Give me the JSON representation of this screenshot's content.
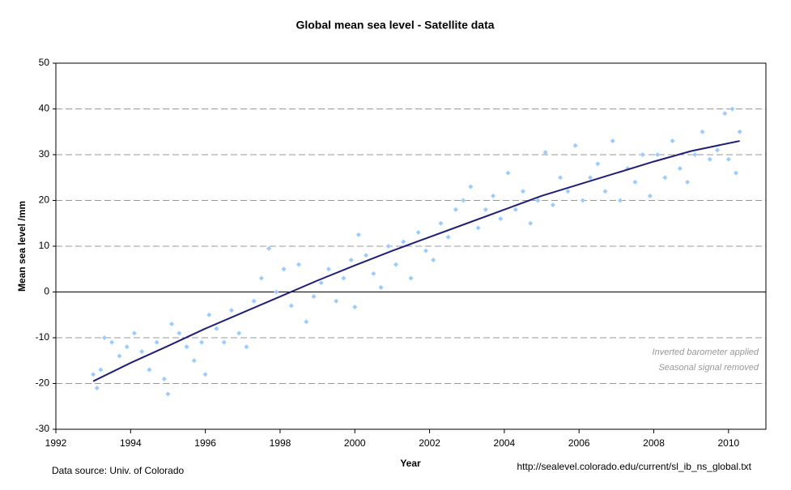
{
  "chart_data": {
    "type": "scatter",
    "title": "Global mean sea level - Satellite data",
    "x_label": "Year",
    "y_label": "Mean sea level /mm",
    "annotations": [
      "Inverted barometer applied",
      "Seasonal signal removed"
    ],
    "source": "Data source: Univ. of Colorado",
    "url": "http://sealevel.colorado.edu/current/sl_ib_ns_global.txt",
    "xlim": [
      1992,
      2011
    ],
    "xticks": [
      1992,
      1994,
      1996,
      1998,
      2000,
      2002,
      2004,
      2006,
      2008,
      2010
    ],
    "ylim": [
      -30,
      50
    ],
    "yticks": [
      -30,
      -20,
      -10,
      0,
      10,
      20,
      30,
      40,
      50
    ],
    "grid": true,
    "series": [
      {
        "color": "#99ccff",
        "x": [
          1993.0,
          1993.1,
          1993.2,
          1993.3,
          1993.5,
          1993.7,
          1993.9,
          1994.1,
          1994.3,
          1994.5,
          1994.7,
          1994.9,
          1995.0,
          1995.1,
          1995.3,
          1995.5,
          1995.7,
          1995.9,
          1996.0,
          1996.1,
          1996.3,
          1996.5,
          1996.7,
          1996.9,
          1997.1,
          1997.3,
          1997.5,
          1997.7,
          1997.9,
          1998.1,
          1998.3,
          1998.5,
          1998.7,
          1998.9,
          1999.1,
          1999.3,
          1999.5,
          1999.7,
          1999.9,
          2000.0,
          2000.1,
          2000.3,
          2000.5,
          2000.7,
          2000.9,
          2001.1,
          2001.3,
          2001.5,
          2001.7,
          2001.9,
          2002.1,
          2002.3,
          2002.5,
          2002.7,
          2002.9,
          2003.1,
          2003.3,
          2003.5,
          2003.7,
          2003.9,
          2004.1,
          2004.3,
          2004.5,
          2004.7,
          2004.9,
          2005.1,
          2005.3,
          2005.5,
          2005.7,
          2005.9,
          2006.1,
          2006.3,
          2006.5,
          2006.7,
          2006.9,
          2007.1,
          2007.3,
          2007.5,
          2007.7,
          2007.9,
          2008.1,
          2008.3,
          2008.5,
          2008.7,
          2008.9,
          2009.1,
          2009.3,
          2009.5,
          2009.7,
          2009.9,
          2010.0,
          2010.1,
          2010.2,
          2010.3
        ],
        "values": [
          -18,
          -21,
          -17,
          -10,
          -11,
          -14,
          -12,
          -9,
          -13,
          -17,
          -11,
          -19,
          -22.3,
          -7,
          -9,
          -12,
          -15,
          -11,
          -18,
          -5,
          -8,
          -11,
          -4,
          -9,
          -12,
          -2,
          3,
          9.5,
          0,
          5,
          -3,
          6,
          -6.5,
          -1,
          2,
          5,
          -2,
          3,
          7,
          -3.3,
          12.5,
          8,
          4,
          1,
          10,
          6,
          11,
          3,
          13,
          9,
          7,
          15,
          12,
          18,
          20,
          23,
          14,
          18,
          21,
          16,
          26,
          18,
          22,
          15,
          20,
          30.5,
          19,
          25,
          22,
          32,
          20,
          25,
          28,
          22,
          33,
          20,
          27,
          24,
          30,
          21,
          30,
          25,
          33,
          27,
          24,
          30,
          35,
          29,
          31,
          39,
          29,
          40,
          26,
          35
        ]
      },
      {
        "type": "line",
        "color": "#1f1f7a",
        "x": [
          1993,
          1994,
          1995,
          1996,
          1997,
          1998,
          1999,
          2000,
          2001,
          2002,
          2003,
          2004,
          2005,
          2006,
          2007,
          2008,
          2009,
          2010,
          2010.3
        ],
        "values": [
          -19.5,
          -15.5,
          -11.8,
          -8,
          -4.5,
          -1,
          2.5,
          5.8,
          9,
          12,
          15,
          18,
          21,
          23.5,
          26,
          28.5,
          30.8,
          32.5,
          33
        ]
      }
    ]
  }
}
